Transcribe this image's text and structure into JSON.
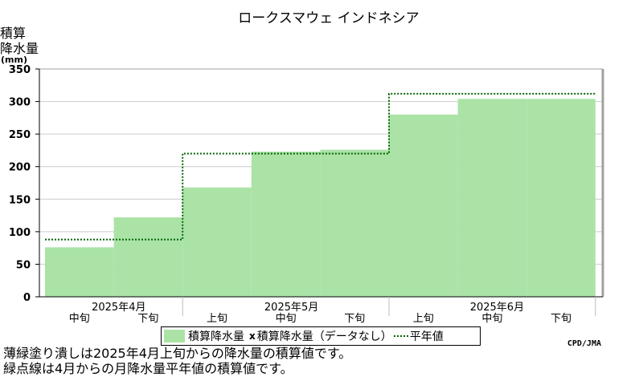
{
  "chart_data": {
    "type": "area",
    "title": "ロークスマウェ インドネシア",
    "ylabel_lines": [
      "積算",
      "降水量"
    ],
    "yunit": "(mm)",
    "ylim": [
      0,
      350
    ],
    "yticks": [
      0,
      50,
      100,
      150,
      200,
      250,
      300,
      350
    ],
    "grid": true,
    "periods": [
      "2025年4月中旬",
      "2025年4月下旬",
      "2025年5月上旬",
      "2025年5月中旬",
      "2025年5月下旬",
      "2025年6月上旬",
      "2025年6月中旬",
      "2025年6月下旬"
    ],
    "month_labels": [
      "2025年4月",
      "2025年5月",
      "2025年6月"
    ],
    "xlabels": [
      "中旬",
      "下旬",
      "上旬",
      "中旬",
      "下旬",
      "上旬",
      "中旬",
      "下旬"
    ],
    "series": [
      {
        "name": "積算降水量",
        "values": [
          76,
          122,
          168,
          223,
          226,
          280,
          304,
          304
        ],
        "color": "#abe3a7"
      },
      {
        "name": "平年値",
        "values": [
          88,
          88,
          220,
          220,
          220,
          312,
          312,
          312
        ],
        "color": "#006400"
      }
    ]
  },
  "legend": {
    "item1": "積算降水量",
    "mark": "x",
    "item2": "積算降水量（データなし）",
    "item3": "平年値"
  },
  "credit": "CPD/JMA",
  "notes": [
    "薄緑塗り潰しは2025年4月上旬からの降水量の積算値です。",
    "緑点線は4月からの月降水量平年値の積算値です。"
  ]
}
